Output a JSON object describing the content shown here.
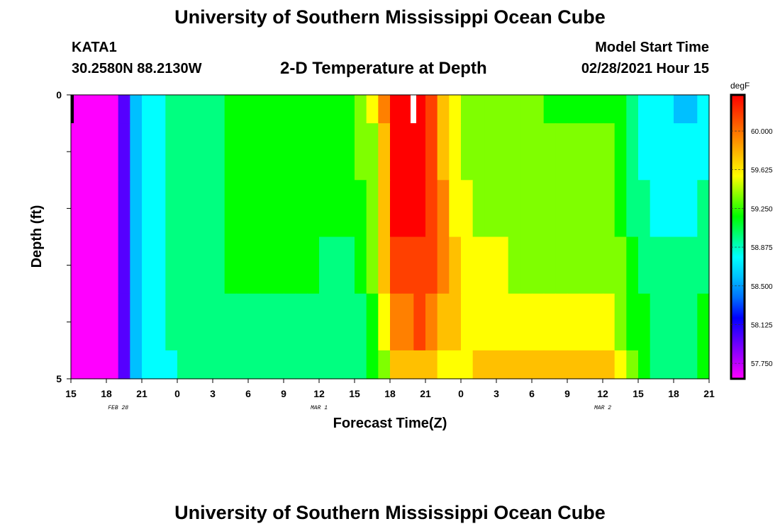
{
  "header": {
    "title": "University of Southern Mississippi Ocean Cube",
    "station_id": "KATA1",
    "station_coords": "30.2580N 88.2130W",
    "plot_title": "2-D Temperature at Depth",
    "model_start_label": "Model Start Time",
    "model_start_value": "02/28/2021 Hour 15"
  },
  "footer": {
    "title": "University of Southern Mississippi Ocean Cube"
  },
  "chart_data": {
    "type": "heatmap",
    "title": "2-D Temperature at Depth",
    "xlabel": "Forecast Time(Z)",
    "ylabel": "Depth (ft)",
    "x_ticks": [
      "15",
      "18",
      "21",
      "0",
      "3",
      "6",
      "9",
      "12",
      "15",
      "18",
      "21",
      "0",
      "3",
      "6",
      "9",
      "12",
      "15",
      "18",
      "21"
    ],
    "x_start_hour": 15,
    "x_end_hour": 69,
    "date_labels": [
      {
        "text": "FEB 28",
        "hour": 19
      },
      {
        "text": "MAR 1",
        "hour": 36
      },
      {
        "text": "MAR 2",
        "hour": 60
      }
    ],
    "y_ticks": [
      "0",
      "",
      "",
      "",
      "",
      "5"
    ],
    "ylim": [
      0,
      5
    ],
    "colorbar": {
      "unit": "degF",
      "min": 57.6,
      "max": 60.35,
      "ticks": [
        "60.000",
        "59.625",
        "59.250",
        "58.875",
        "58.500",
        "58.125",
        "57.750"
      ],
      "tick_values": [
        60.0,
        59.625,
        59.25,
        58.875,
        58.5,
        58.125,
        57.75
      ]
    },
    "time_knots": [
      15,
      17,
      19,
      20.5,
      21.5,
      23,
      26,
      28,
      31,
      35,
      38,
      39,
      40,
      41,
      41.5,
      42,
      43,
      44,
      45,
      45.5,
      46,
      47,
      48,
      50,
      55,
      60,
      62,
      63,
      65,
      67,
      69
    ],
    "depth_layers": [
      {
        "depth": "0.0-0.5",
        "values": [
          57.65,
          57.7,
          57.8,
          58.6,
          58.75,
          58.95,
          58.95,
          59.1,
          59.25,
          59.2,
          59.15,
          59.3,
          59.35,
          59.55,
          59.9,
          60.3,
          60.3,
          60.3,
          60.2,
          60.0,
          59.85,
          59.55,
          59.4,
          59.3,
          59.25,
          59.25,
          59.1,
          58.85,
          58.75,
          58.55,
          58.75
        ]
      },
      {
        "depth": "0.5-1.5",
        "values": [
          57.65,
          57.7,
          57.8,
          58.6,
          58.75,
          58.9,
          58.95,
          59.1,
          59.2,
          59.15,
          59.15,
          59.25,
          59.3,
          59.5,
          59.8,
          60.2,
          60.25,
          60.25,
          60.2,
          60.15,
          59.95,
          59.6,
          59.45,
          59.35,
          59.3,
          59.3,
          59.15,
          58.85,
          58.8,
          58.75,
          58.85
        ]
      },
      {
        "depth": "1.5-2.5",
        "values": [
          57.65,
          57.7,
          57.8,
          58.6,
          58.75,
          58.9,
          58.95,
          59.1,
          59.2,
          59.15,
          59.1,
          59.2,
          59.3,
          59.45,
          59.7,
          60.15,
          60.2,
          60.2,
          60.15,
          60.15,
          60.05,
          59.7,
          59.5,
          59.4,
          59.35,
          59.35,
          59.2,
          58.9,
          58.85,
          58.85,
          58.9
        ]
      },
      {
        "depth": "2.5-3.5",
        "values": [
          57.65,
          57.7,
          57.8,
          58.6,
          58.75,
          58.9,
          58.95,
          59.1,
          59.15,
          59.1,
          59.0,
          59.1,
          59.2,
          59.45,
          59.65,
          60.1,
          60.1,
          60.1,
          60.1,
          60.1,
          60.1,
          59.75,
          59.55,
          59.45,
          59.4,
          59.4,
          59.25,
          58.95,
          58.9,
          58.9,
          58.95
        ]
      },
      {
        "depth": "3.5-4.5",
        "values": [
          57.65,
          57.7,
          57.8,
          58.6,
          58.75,
          58.9,
          58.95,
          59.0,
          59.05,
          59.0,
          58.95,
          59.0,
          59.1,
          59.25,
          59.5,
          59.85,
          59.95,
          60.0,
          60.0,
          59.85,
          59.7,
          59.65,
          59.6,
          59.55,
          59.55,
          59.55,
          59.35,
          59.1,
          59.0,
          59.0,
          59.1
        ]
      },
      {
        "depth": "4.5-5.0",
        "values": [
          57.65,
          57.7,
          57.8,
          58.6,
          58.75,
          58.85,
          58.95,
          59.0,
          59.0,
          58.95,
          58.9,
          58.95,
          59.05,
          59.2,
          59.4,
          59.75,
          59.8,
          59.8,
          59.75,
          59.65,
          59.6,
          59.6,
          59.6,
          59.65,
          59.7,
          59.7,
          59.45,
          59.1,
          59.0,
          59.0,
          59.1
        ]
      }
    ]
  },
  "colors": {
    "scale": [
      "#ff00ff",
      "#aa00ff",
      "#5500ff",
      "#0000ff",
      "#0070ff",
      "#00c0ff",
      "#00ffff",
      "#00ff80",
      "#00ff00",
      "#7fff00",
      "#ffff00",
      "#ffc000",
      "#ff8000",
      "#ff4000",
      "#ff0000"
    ],
    "marker_dark": "#000000",
    "marker_light": "#ffffff"
  }
}
